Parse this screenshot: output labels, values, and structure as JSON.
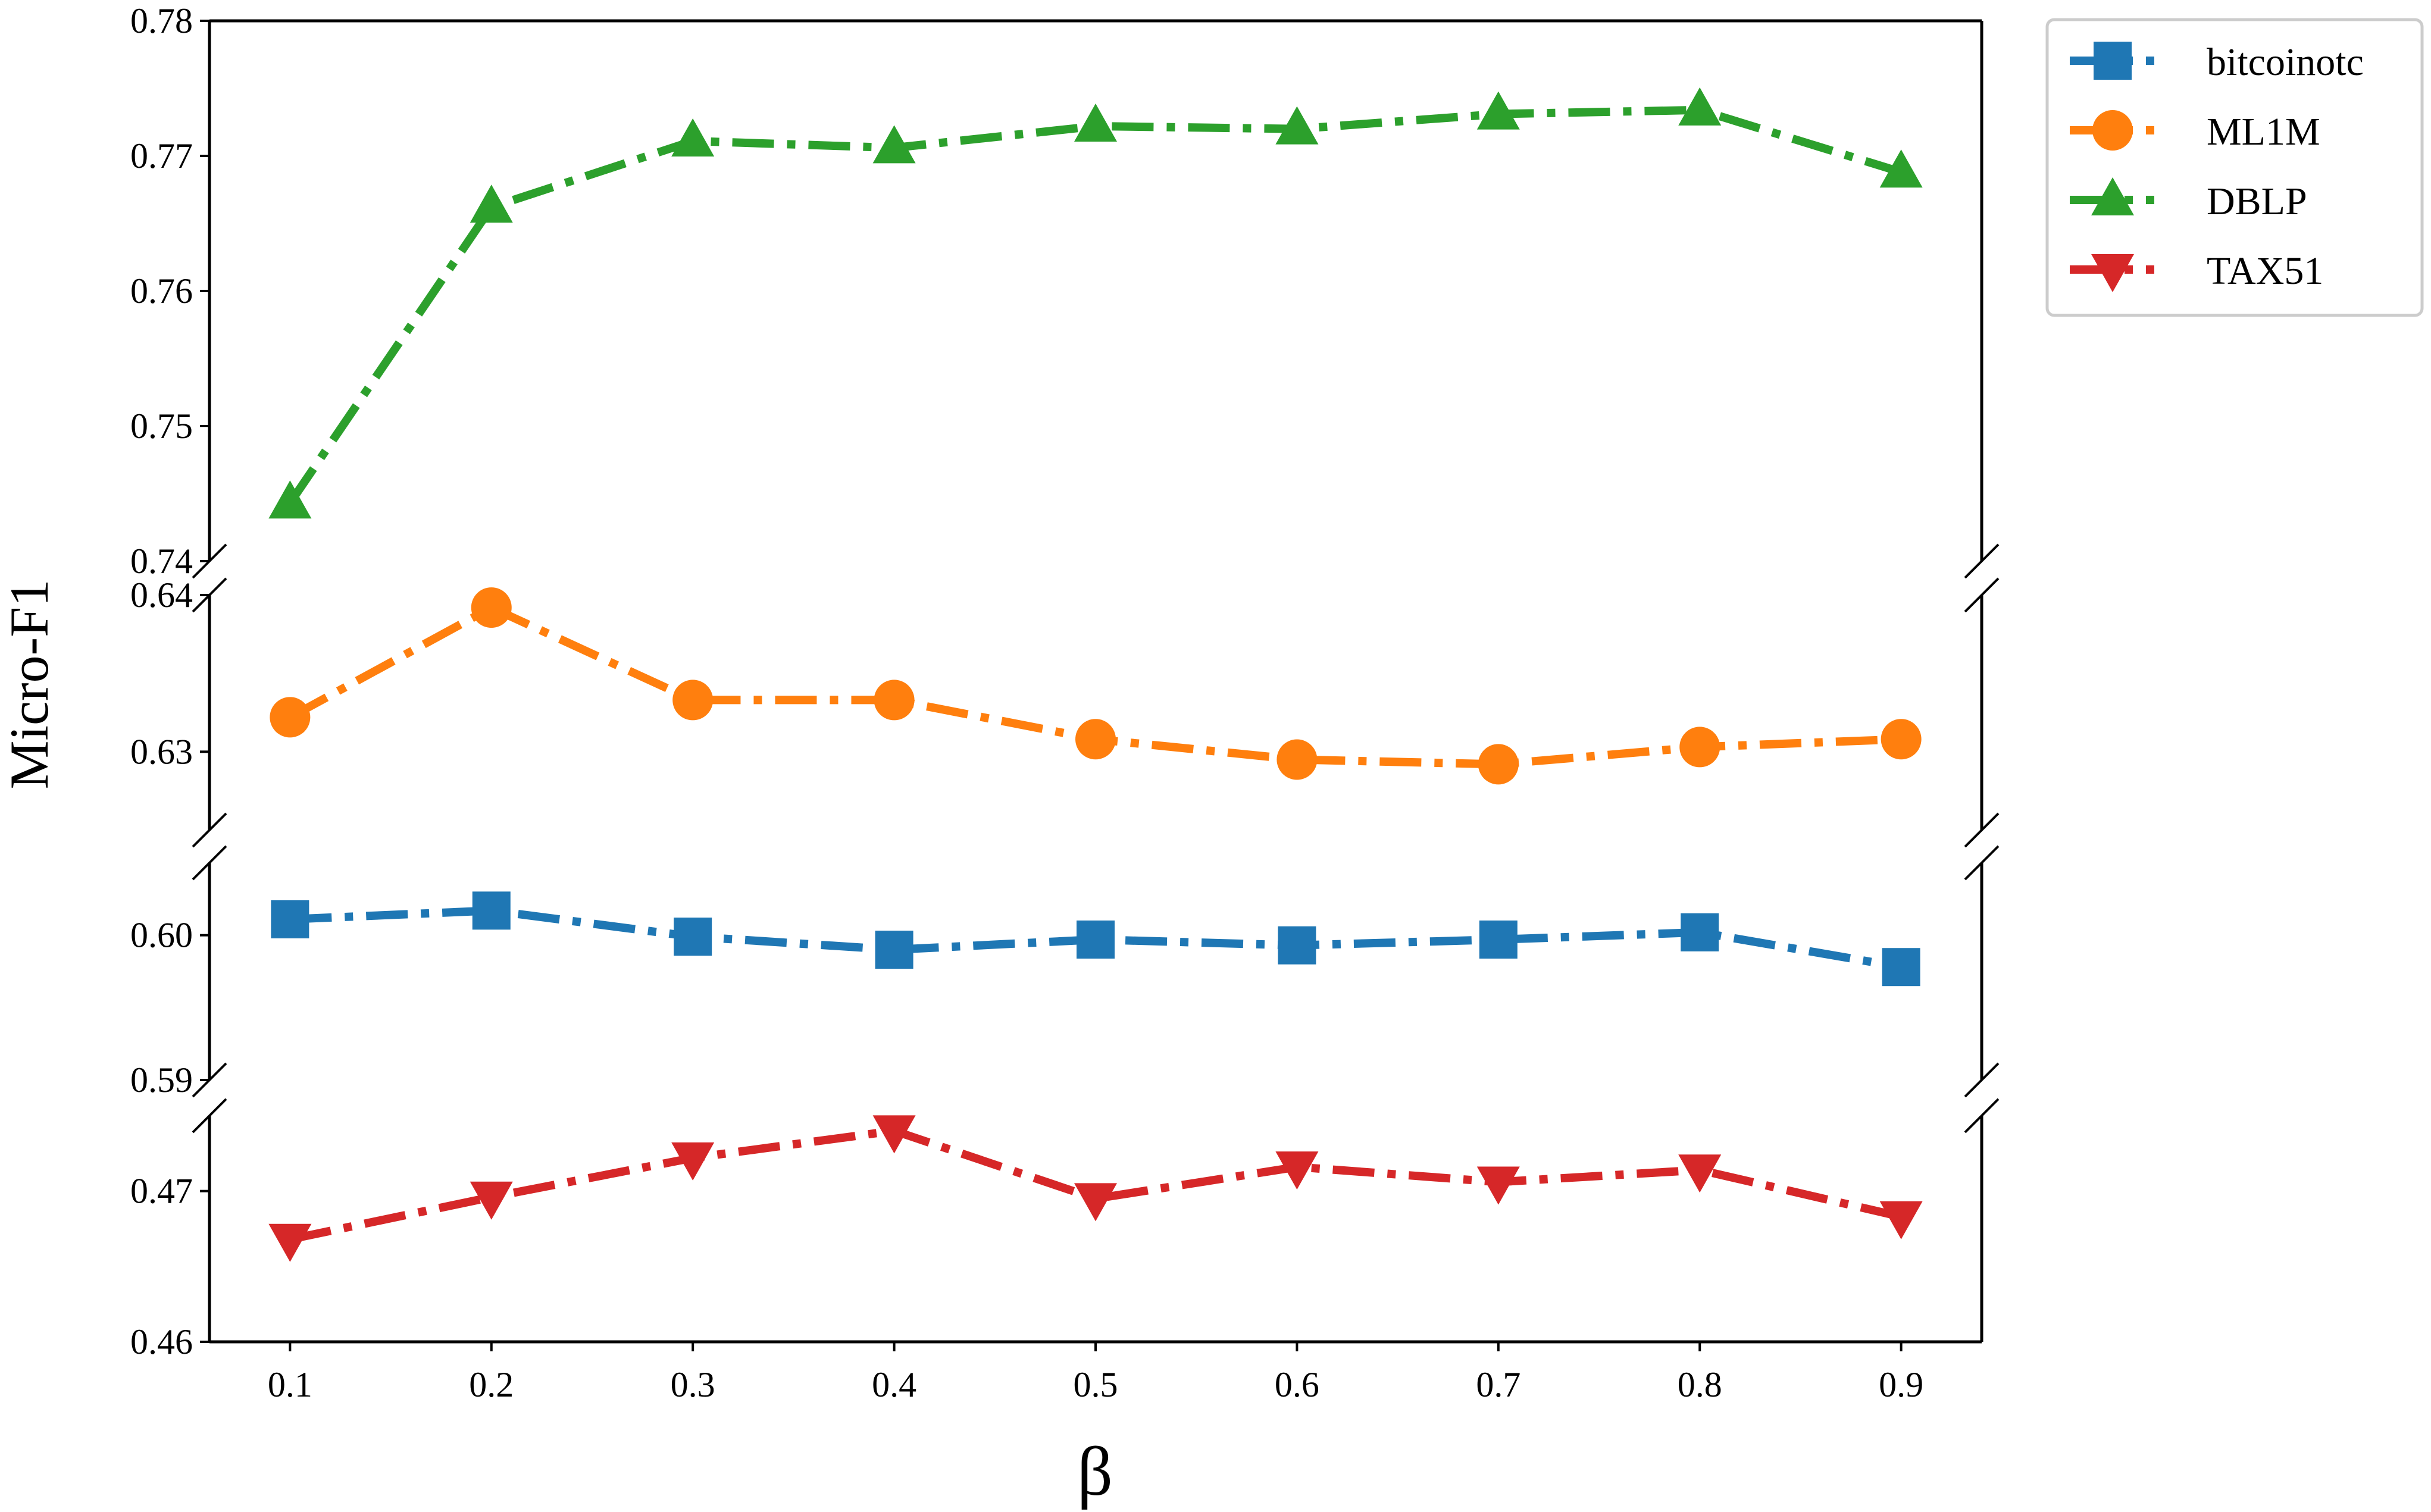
{
  "chart_data": {
    "type": "line",
    "xlabel": "β",
    "ylabel": "Micro-F1",
    "x": [
      0.1,
      0.2,
      0.3,
      0.4,
      0.5,
      0.6,
      0.7,
      0.8,
      0.9
    ],
    "xtick_labels": [
      "0.1",
      "0.2",
      "0.3",
      "0.4",
      "0.5",
      "0.6",
      "0.7",
      "0.8",
      "0.9"
    ],
    "xlim": [
      0.06,
      0.94
    ],
    "legend_position": "outside top-right",
    "grid": false,
    "broken_axis": true,
    "y_segments": [
      {
        "name": "DBLP-panel",
        "ylim": [
          0.74,
          0.78
        ],
        "ticks": [
          "0.74",
          "0.75",
          "0.76",
          "0.77",
          "0.78"
        ]
      },
      {
        "name": "ML1M-panel",
        "ylim": [
          0.625,
          0.64
        ],
        "ticks": [
          "0.63",
          "0.64"
        ]
      },
      {
        "name": "bitcoinotc-panel",
        "ylim": [
          0.59,
          0.605
        ],
        "ticks": [
          "0.59",
          "0.60"
        ]
      },
      {
        "name": "TAX51-panel",
        "ylim": [
          0.46,
          0.475
        ],
        "ticks": [
          "0.46",
          "0.47"
        ]
      }
    ],
    "series": [
      {
        "name": "bitcoinotc",
        "color": "#1f77b4",
        "marker": "square",
        "segment": 2,
        "values": [
          0.6011,
          0.6017,
          0.5999,
          0.599,
          0.5997,
          0.5993,
          0.5997,
          0.6002,
          0.5978
        ]
      },
      {
        "name": "ML1M",
        "color": "#ff7f0e",
        "marker": "circle",
        "segment": 1,
        "values": [
          0.6322,
          0.6392,
          0.6333,
          0.6333,
          0.6308,
          0.6295,
          0.6292,
          0.6303,
          0.6308
        ]
      },
      {
        "name": "DBLP",
        "color": "#2ca02c",
        "marker": "triangle-up",
        "segment": 0,
        "values": [
          0.7443,
          0.7662,
          0.7711,
          0.7706,
          0.7722,
          0.772,
          0.7731,
          0.7734,
          0.7688
        ]
      },
      {
        "name": "TAX51",
        "color": "#d62728",
        "marker": "triangle-down",
        "segment": 3,
        "values": [
          0.4668,
          0.4696,
          0.4722,
          0.474,
          0.4695,
          0.4716,
          0.4706,
          0.4714,
          0.4683
        ]
      }
    ]
  }
}
